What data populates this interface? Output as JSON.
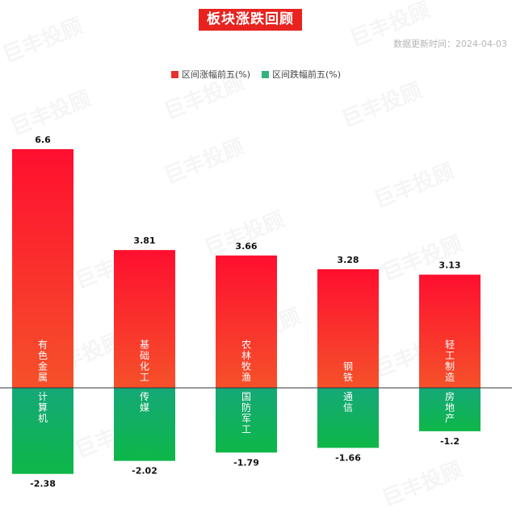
{
  "header": {
    "title": "板块涨跌回顾",
    "update_time": "数据更新时间：2024-04-03"
  },
  "watermark": "巨丰投顾",
  "chart_data": {
    "type": "bar",
    "title": "板块涨跌回顾",
    "legend_position": "top-center",
    "series": [
      {
        "name": "区间涨幅前五(%)",
        "color": "#e8312c",
        "categories": [
          "有色金属",
          "基础化工",
          "农林牧渔",
          "钢铁",
          "轻工制造"
        ],
        "values": [
          6.6,
          3.81,
          3.66,
          3.28,
          3.13
        ]
      },
      {
        "name": "区间跌幅前五(%)",
        "color": "#33b27a",
        "categories": [
          "计算机",
          "传媒",
          "国防军工",
          "通信",
          "房地产"
        ],
        "values": [
          -2.38,
          -2.02,
          -1.79,
          -1.66,
          -1.2
        ]
      }
    ],
    "ylim": [
      -2.38,
      6.6
    ],
    "grid": false
  }
}
